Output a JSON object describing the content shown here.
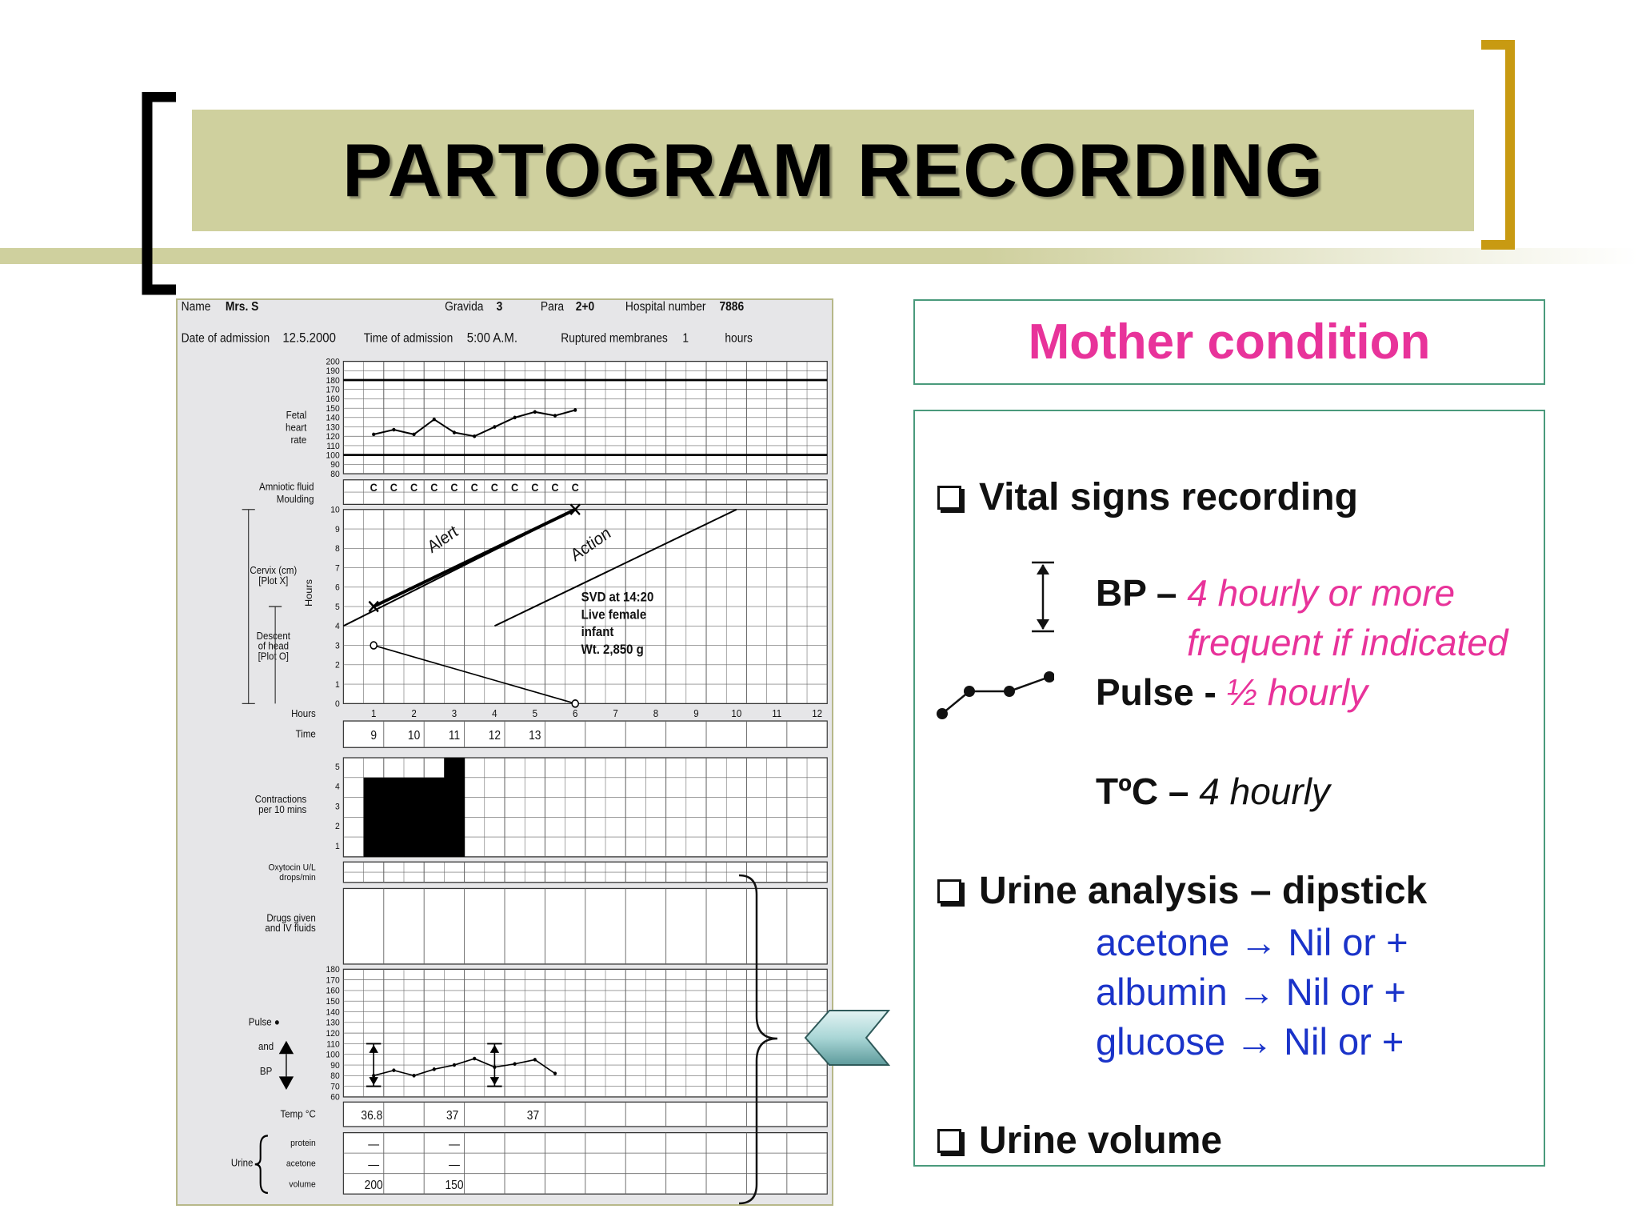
{
  "slide": {
    "title": "PARTOGRAM RECORDING",
    "colors": {
      "band": "#cfd09e",
      "left_bracket": "#000000",
      "right_bracket": "#c89a12",
      "accent_pink": "#e8339a",
      "accent_blue": "#1a33c9",
      "box_border": "#4a9a7c"
    }
  },
  "partogram": {
    "header": {
      "name_label": "Name",
      "name_value": "Mrs. S",
      "gravida_label": "Gravida",
      "gravida_value": "3",
      "para_label": "Para",
      "para_value": "2+0",
      "hospital_label": "Hospital number",
      "hospital_value": "7886",
      "date_label": "Date of admission",
      "date_value": "12.5.2000",
      "time_label": "Time of admission",
      "time_value": "5:00 A.M.",
      "ruptured_label": "Ruptured membranes",
      "ruptured_value": "1",
      "hours_label": "hours"
    },
    "fhr": {
      "label_lines": [
        "Fetal",
        "heart",
        "rate"
      ],
      "ticks": [
        "200",
        "190",
        "180",
        "170",
        "160",
        "150",
        "140",
        "130",
        "120",
        "110",
        "100",
        "90",
        "80"
      ],
      "values": [
        122,
        127,
        122,
        138,
        124,
        120,
        130,
        140,
        146,
        142,
        148
      ]
    },
    "amniotic": {
      "label1": "Amniotic fluid",
      "label2": "Moulding",
      "cells": [
        "C",
        "C",
        "C",
        "C",
        "C",
        "C",
        "C",
        "C",
        "C",
        "C",
        "C"
      ]
    },
    "cervix": {
      "cervix_label": [
        "Cervix (cm)",
        "[Plot X]"
      ],
      "descent_label": [
        "Descent",
        "of head",
        "[Plot O]"
      ],
      "hours_axis_label": "Hours",
      "y_ticks": [
        "10",
        "9",
        "8",
        "7",
        "6",
        "5",
        "4",
        "3",
        "2",
        "1",
        "0"
      ],
      "hour_ticks": [
        "1",
        "2",
        "3",
        "4",
        "5",
        "6",
        "7",
        "8",
        "9",
        "10",
        "11",
        "12"
      ],
      "hours_label": "Hours",
      "alert_label": "Alert",
      "action_label": "Action",
      "cervix_points": [
        [
          1,
          5
        ],
        [
          6,
          10
        ]
      ],
      "descent_points": [
        [
          1,
          3
        ],
        [
          6,
          0
        ]
      ],
      "note": [
        "SVD at 14:20",
        "Live female",
        "infant",
        "Wt. 2,850 g"
      ]
    },
    "time_row": {
      "label": "Time",
      "values": [
        "9",
        "10",
        "11",
        "12",
        "13"
      ]
    },
    "contractions": {
      "label": [
        "Contractions",
        "per 10 mins"
      ],
      "ticks": [
        "5",
        "4",
        "3",
        "2",
        "1"
      ],
      "values": [
        4,
        4,
        4,
        4,
        5
      ]
    },
    "oxytocin": {
      "label": [
        "Oxytocin U/L",
        "drops/min"
      ]
    },
    "drugs": {
      "label": [
        "Drugs given",
        "and IV fluids"
      ]
    },
    "pulse_bp": {
      "pulse_label": "Pulse ●",
      "and_label": "and",
      "bp_label": "BP",
      "ticks": [
        "180",
        "170",
        "160",
        "150",
        "140",
        "130",
        "120",
        "110",
        "100",
        "90",
        "80",
        "70",
        "60"
      ],
      "pulse_values": [
        80,
        85,
        80,
        86,
        90,
        96,
        88,
        91,
        95,
        82
      ],
      "bp_readings": [
        {
          "systolic": 110,
          "diastolic": 70
        },
        {
          "systolic": 110,
          "diastolic": 70
        }
      ]
    },
    "temp": {
      "label": "Temp °C",
      "values": [
        "36.8",
        "37",
        "37"
      ]
    },
    "urine": {
      "label": "Urine",
      "protein_label": "protein",
      "acetone_label": "acetone",
      "volume_label": "volume",
      "protein": [
        "—",
        "—"
      ],
      "acetone": [
        "—",
        "—"
      ],
      "volume": [
        "200",
        "150"
      ]
    }
  },
  "mother": {
    "title": "Mother condition",
    "vital_heading": "Vital signs recording",
    "bp_label": "BP –",
    "bp_note1": "4 hourly or more",
    "bp_note2": "frequent if indicated",
    "pulse_label": "Pulse -",
    "pulse_note": "½ hourly",
    "temp_label": "TºC –",
    "temp_note": "4 hourly",
    "urine_heading": "Urine analysis – dipstick",
    "urine_items": [
      "acetone → Nil or +",
      "albumin → Nil or +",
      "glucose → Nil or +"
    ],
    "volume_heading": "Urine volume"
  }
}
